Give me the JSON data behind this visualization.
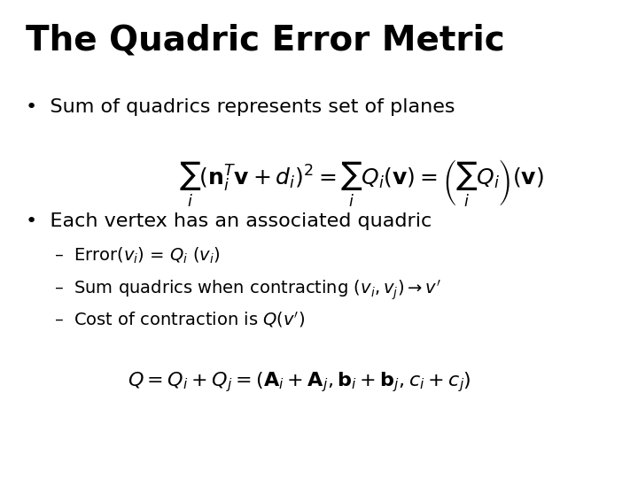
{
  "title": "The Quadric Error Metric",
  "background_color": "#ffffff",
  "text_color": "#000000",
  "bullet1": "Sum of quadrics represents set of planes",
  "bullet2": "Each vertex has an associated quadric",
  "sub1": "Error(",
  "sub2": "Sum quadrics when contracting ",
  "sub3": "Cost of contraction is ",
  "title_fontsize": 28,
  "bullet_fontsize": 16,
  "sub_fontsize": 14,
  "formula_fontsize": 16
}
